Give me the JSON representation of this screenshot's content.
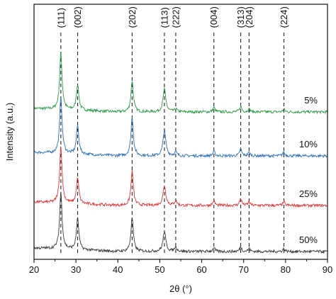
{
  "chart_data": {
    "type": "line",
    "xlabel": "2θ (°)",
    "ylabel": "Intensity (a.u.)",
    "xlim": [
      20,
      90
    ],
    "x_ticks": [
      "20",
      "30",
      "40",
      "50",
      "60",
      "70",
      "80",
      "90"
    ],
    "grid": false,
    "legend": "none",
    "peaks": [
      {
        "label": "(111)",
        "x": 26.4
      },
      {
        "label": "(002)",
        "x": 30.4
      },
      {
        "label": "(202)",
        "x": 43.4
      },
      {
        "label": "(113)",
        "x": 51.1
      },
      {
        "label": "(222)",
        "x": 53.8
      },
      {
        "label": "(004)",
        "x": 62.9
      },
      {
        "label": "(313)",
        "x": 69.3
      },
      {
        "label": "(204)",
        "x": 71.3
      },
      {
        "label": "(224)",
        "x": 79.6
      }
    ],
    "series": [
      {
        "name": "5%",
        "color": "#2e9a4a",
        "peak_heights": [
          1.0,
          0.45,
          0.55,
          0.4,
          0.05,
          0.08,
          0.1,
          0.05,
          0.05
        ]
      },
      {
        "name": "10%",
        "color": "#2f6fb5",
        "peak_heights": [
          1.0,
          0.5,
          0.68,
          0.45,
          0.06,
          0.08,
          0.12,
          0.06,
          0.06
        ]
      },
      {
        "name": "25%",
        "color": "#d9383a",
        "peak_heights": [
          1.0,
          0.45,
          0.6,
          0.35,
          0.08,
          0.08,
          0.12,
          0.06,
          0.06
        ]
      },
      {
        "name": "50%",
        "color": "#3a3a3a",
        "peak_heights": [
          1.0,
          0.55,
          0.6,
          0.35,
          0.08,
          0.07,
          0.08,
          0.05,
          0.05
        ]
      }
    ]
  }
}
